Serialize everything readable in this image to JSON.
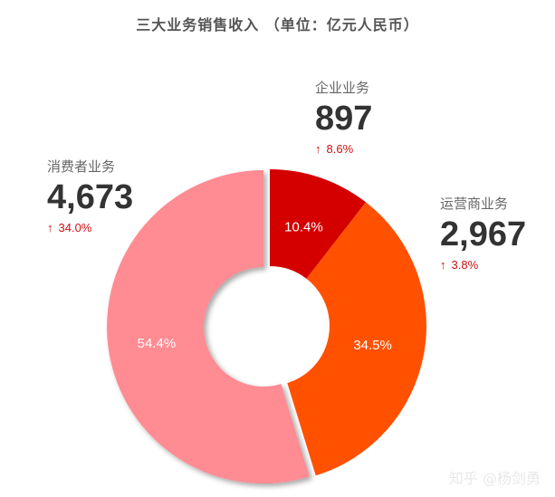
{
  "chart_data": {
    "type": "pie",
    "title": "三大业务销售收入 （单位：亿元人民币）",
    "categories": [
      "企业业务",
      "运营商业务",
      "消费者业务"
    ],
    "values": [
      897,
      2967,
      4673
    ],
    "percent_labels": [
      "10.4%",
      "34.5%",
      "54.4%"
    ],
    "value_labels": [
      "897",
      "2,967",
      "4,673"
    ],
    "changes": [
      "8.6%",
      "3.8%",
      "34.0%"
    ],
    "colors": [
      "#d40000",
      "#ff5100",
      "#ff8b93"
    ],
    "change_color": "#cc1111",
    "change_icon": "arrow-up-icon"
  },
  "watermark": "知乎 @杨剑勇"
}
